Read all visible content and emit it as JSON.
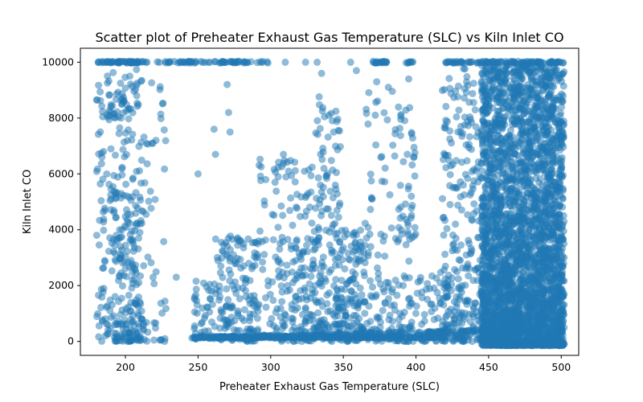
{
  "chart_data": {
    "type": "scatter",
    "title": "Scatter plot of Preheater Exhaust Gas Temperature (SLC) vs Kiln Inlet CO",
    "xlabel": "Preheater Exhaust Gas Temperature (SLC)",
    "ylabel": "Kiln Inlet CO",
    "xlim": [
      169,
      512
    ],
    "ylim": [
      -500,
      10500
    ],
    "xticks": [
      200,
      250,
      300,
      350,
      400,
      450,
      500
    ],
    "yticks": [
      0,
      2000,
      4000,
      6000,
      8000,
      10000
    ],
    "grid": false,
    "point_color": "#1f77b4",
    "point_alpha": 0.5,
    "point_radius": 4.5,
    "series": [
      {
        "regions": [
          {
            "kind": "hline",
            "x": [
              181,
              215
            ],
            "y": 10000,
            "n": 60
          },
          {
            "kind": "hline",
            "x": [
              220,
              300
            ],
            "y": 10000,
            "n": 70
          },
          {
            "kind": "hline",
            "x": [
              370,
              382
            ],
            "y": 10000,
            "n": 20
          },
          {
            "kind": "hline",
            "x": [
              393,
              398
            ],
            "y": 10000,
            "n": 8
          },
          {
            "kind": "hline",
            "x": [
              420,
              500
            ],
            "y": 10000,
            "n": 100
          },
          {
            "kind": "box",
            "x": [
              180,
              192
            ],
            "y": [
              0,
              9800
            ],
            "n": 90
          },
          {
            "kind": "box",
            "x": [
              192,
              212
            ],
            "y": [
              0,
              9800
            ],
            "n": 260
          },
          {
            "kind": "box",
            "x": [
              212,
              228
            ],
            "y": [
              0,
              9500
            ],
            "n": 50
          },
          {
            "kind": "hline",
            "x": [
              245,
              420
            ],
            "y": 150,
            "n": 260
          },
          {
            "kind": "line",
            "x": [
              248,
              470
            ],
            "y": [
              120,
              400
            ],
            "n": 200
          },
          {
            "kind": "box",
            "x": [
              247,
              262
            ],
            "y": [
              100,
              2200
            ],
            "n": 40
          },
          {
            "kind": "box",
            "x": [
              262,
              292
            ],
            "y": [
              0,
              3800
            ],
            "n": 160
          },
          {
            "kind": "box",
            "x": [
              292,
              305
            ],
            "y": [
              200,
              6600
            ],
            "n": 40
          },
          {
            "kind": "box",
            "x": [
              305,
              330
            ],
            "y": [
              0,
              6700
            ],
            "n": 170
          },
          {
            "kind": "box",
            "x": [
              330,
              348
            ],
            "y": [
              0,
              8800
            ],
            "n": 180
          },
          {
            "kind": "box",
            "x": [
              348,
              365
            ],
            "y": [
              0,
              4000
            ],
            "n": 130
          },
          {
            "kind": "box",
            "x": [
              365,
              385
            ],
            "y": [
              0,
              9300
            ],
            "n": 90
          },
          {
            "kind": "box",
            "x": [
              385,
              400
            ],
            "y": [
              0,
              8500
            ],
            "n": 100
          },
          {
            "kind": "box",
            "x": [
              400,
              430
            ],
            "y": [
              0,
              2500
            ],
            "n": 70
          },
          {
            "kind": "box",
            "x": [
              418,
              448
            ],
            "y": [
              0,
              9800
            ],
            "n": 280
          },
          {
            "kind": "box",
            "x": [
              445,
              502
            ],
            "y": [
              -150,
              10000
            ],
            "n": 3200
          }
        ],
        "points": [
          {
            "x": 190,
            "y": 8400
          },
          {
            "x": 197,
            "y": 8000
          },
          {
            "x": 203,
            "y": 9500
          },
          {
            "x": 199,
            "y": 8600
          },
          {
            "x": 221,
            "y": 7200
          },
          {
            "x": 227,
            "y": 0
          },
          {
            "x": 235,
            "y": 2300
          },
          {
            "x": 250,
            "y": 6000
          },
          {
            "x": 261,
            "y": 7600
          },
          {
            "x": 262,
            "y": 6700
          },
          {
            "x": 270,
            "y": 9200
          },
          {
            "x": 271,
            "y": 8200
          },
          {
            "x": 272,
            "y": 7500
          },
          {
            "x": 283,
            "y": 2200
          },
          {
            "x": 303,
            "y": 5700
          },
          {
            "x": 335,
            "y": 9600
          },
          {
            "x": 324,
            "y": 10000
          },
          {
            "x": 310,
            "y": 10000
          },
          {
            "x": 332,
            "y": 10000
          },
          {
            "x": 355,
            "y": 10000
          },
          {
            "x": 359,
            "y": 9700
          },
          {
            "x": 372,
            "y": 8100
          },
          {
            "x": 373,
            "y": 9300
          },
          {
            "x": 381,
            "y": 9100
          },
          {
            "x": 395,
            "y": 9400
          },
          {
            "x": 394,
            "y": 6700
          }
        ]
      }
    ]
  }
}
